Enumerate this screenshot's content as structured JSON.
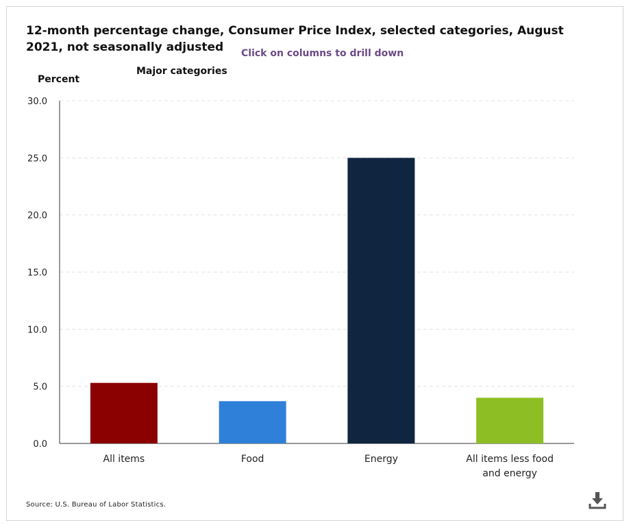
{
  "chart_data": {
    "type": "bar",
    "title": "12-month percentage change, Consumer Price Index, selected categories, August 2021, not seasonally adjusted",
    "subtitle": "Major categories",
    "drill_hint": "Click on columns to drill down",
    "ylabel": "Percent",
    "xlabel": "",
    "ylim": [
      0,
      30
    ],
    "yticks": [
      "0.0",
      "5.0",
      "10.0",
      "15.0",
      "20.0",
      "25.0",
      "30.0"
    ],
    "grid": true,
    "categories": [
      "All items",
      "Food",
      "Energy",
      "All items less food and energy"
    ],
    "values": [
      5.3,
      3.7,
      25.0,
      4.0
    ],
    "colors": [
      "#8b0000",
      "#2f80d8",
      "#0f2540",
      "#8dbf24"
    ],
    "source": "Source: U.S. Bureau of Labor Statistics."
  },
  "icons": {
    "download": "download-icon"
  }
}
